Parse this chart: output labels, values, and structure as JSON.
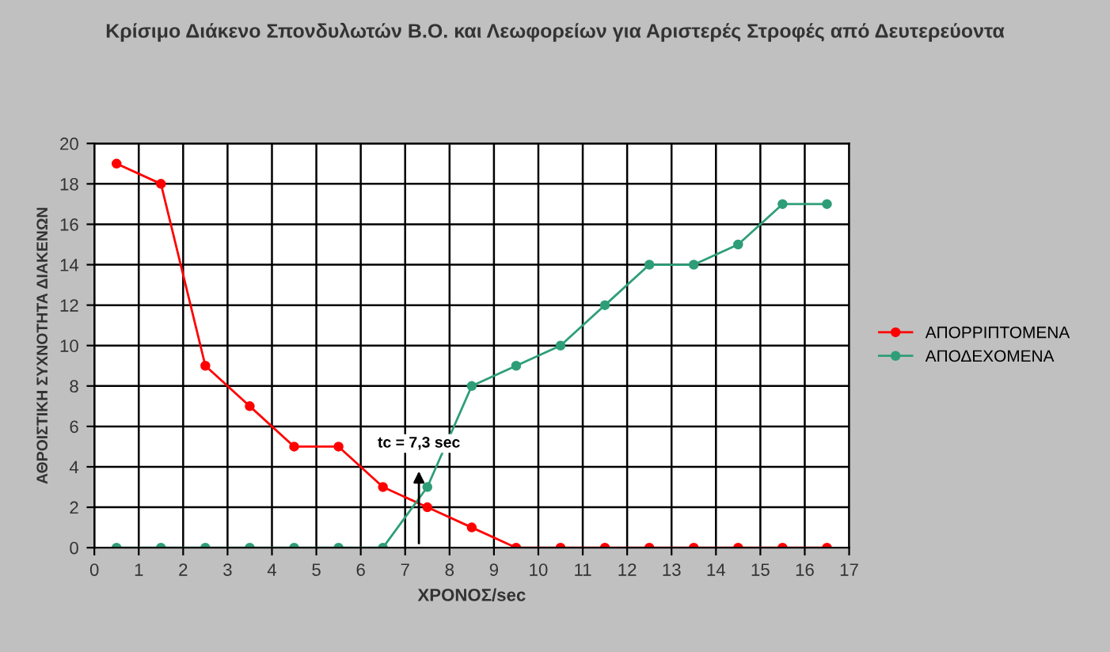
{
  "chart_data": {
    "type": "line",
    "title": "Κρίσιμο Διάκενο Σπονδυλωτών Β.Ο. και Λεωφορείων για Αριστερές Στροφές από Δευτερεύοντα",
    "xlabel": "ΧΡΟΝΟΣ/sec",
    "ylabel": "ΑΘΡΟΙΣΤΙΚΗ ΣΥΧΝΟΤΗΤΑ ΔΙΑΚΕΝΩΝ",
    "x": [
      0.5,
      1.5,
      2.5,
      3.5,
      4.5,
      5.5,
      6.5,
      7.5,
      8.5,
      9.5,
      10.5,
      11.5,
      12.5,
      13.5,
      14.5,
      15.5,
      16.5
    ],
    "series": [
      {
        "name": "ΑΠΟΡΡΙΠΤΟΜΕΝΑ",
        "color": "#ff0000",
        "values": [
          19,
          18,
          9,
          7,
          5,
          5,
          3,
          2,
          1,
          0,
          0,
          0,
          0,
          0,
          0,
          0,
          0
        ]
      },
      {
        "name": "ΑΠΟΔΕΧΟΜΕΝΑ",
        "color": "#2e9e78",
        "values": [
          0,
          0,
          0,
          0,
          0,
          0,
          0,
          3,
          8,
          9,
          10,
          12,
          14,
          14,
          15,
          17,
          17
        ]
      }
    ],
    "xlim": [
      0,
      17
    ],
    "xticks": [
      0,
      1,
      2,
      3,
      4,
      5,
      6,
      7,
      8,
      9,
      10,
      11,
      12,
      13,
      14,
      15,
      16,
      17
    ],
    "ylim": [
      0,
      20
    ],
    "yticks": [
      0,
      2,
      4,
      6,
      8,
      10,
      12,
      14,
      16,
      18,
      20
    ],
    "grid": true,
    "legend": "right",
    "marker": "circle",
    "line_style": "solid",
    "annotations": [
      "tc = 7,3 sec"
    ]
  }
}
